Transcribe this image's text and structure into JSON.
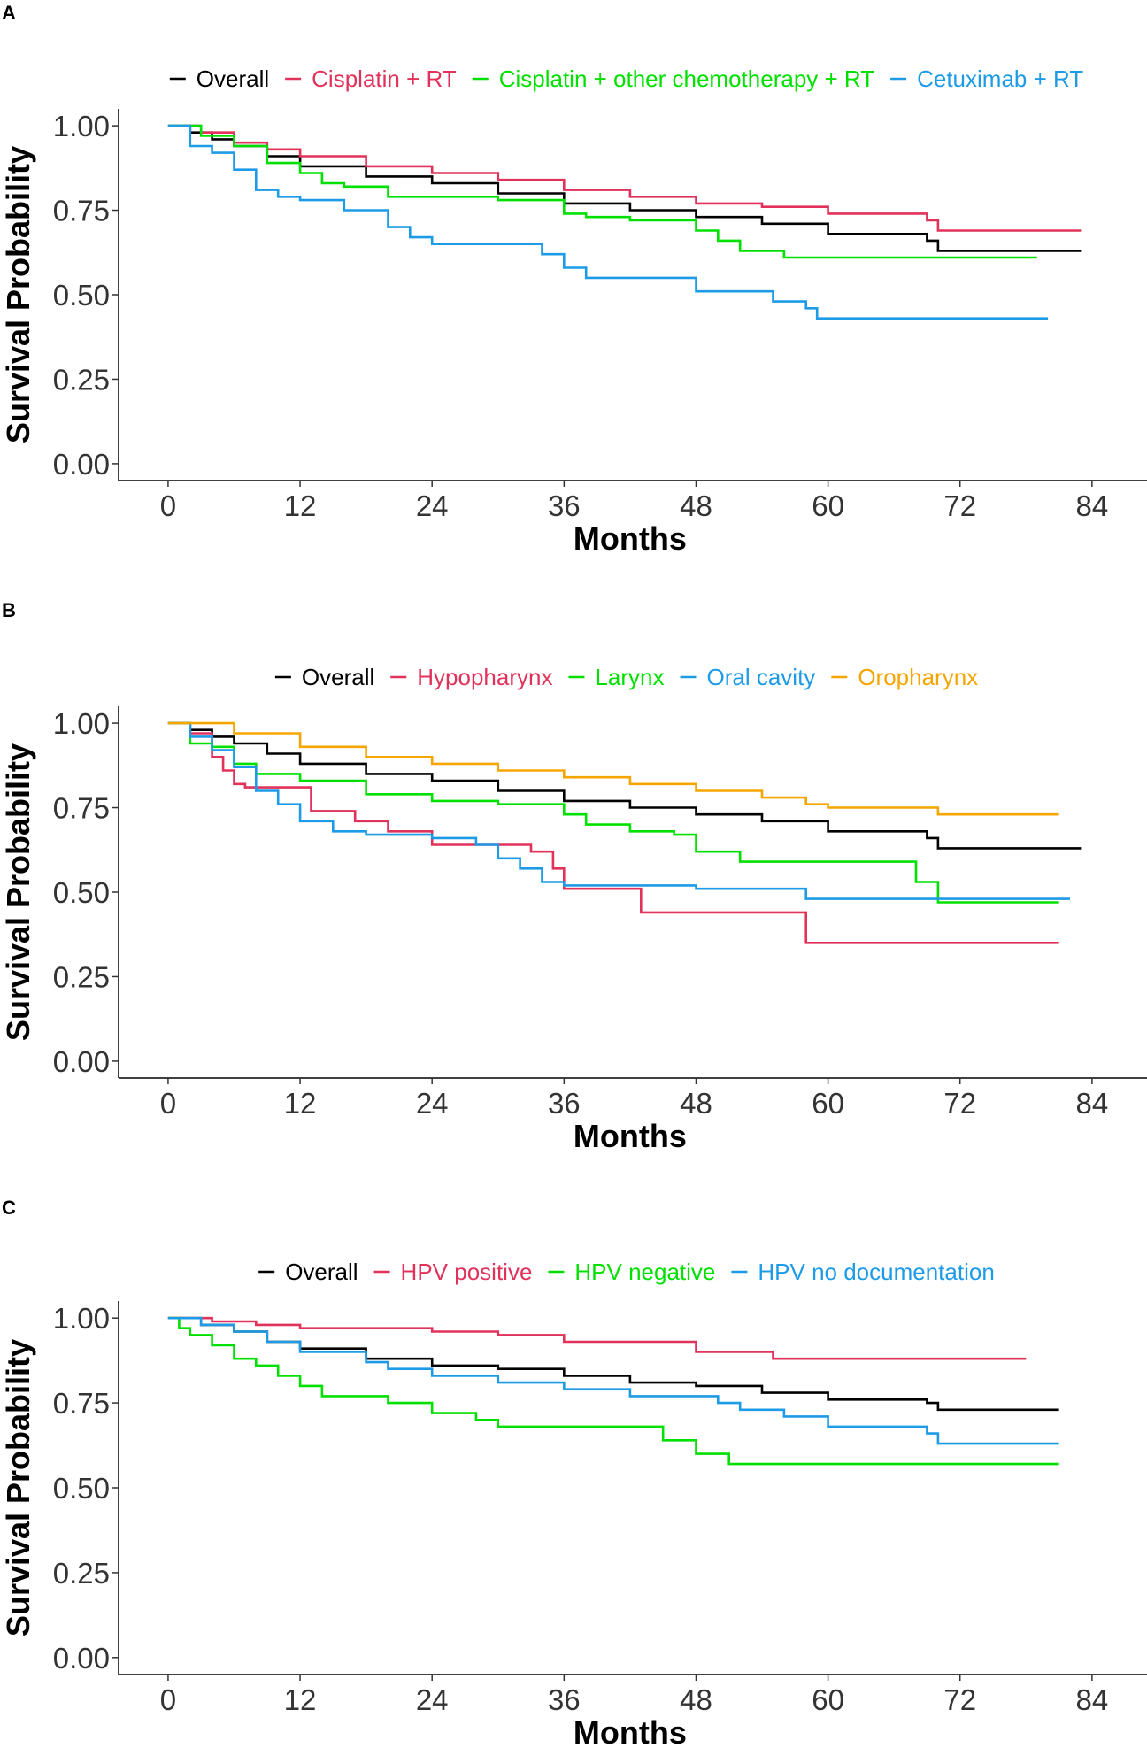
{
  "chart_data": [
    {
      "panel": "A",
      "type": "line",
      "xlabel": "Months",
      "ylabel": "Survival Probability",
      "xticks": [
        0,
        12,
        24,
        36,
        48,
        60,
        72,
        84
      ],
      "yticks": [
        "0.00",
        "0.25",
        "0.50",
        "0.75",
        "1.00"
      ],
      "xlim": [
        -4.5,
        89
      ],
      "ylim": [
        -0.05,
        1.05
      ],
      "legend_position": "top",
      "series": [
        {
          "name": "Overall",
          "color": "#000000",
          "x": [
            0,
            2,
            4,
            6,
            9,
            12,
            18,
            24,
            30,
            36,
            42,
            48,
            54,
            60,
            66,
            69,
            70,
            83
          ],
          "y": [
            1.0,
            0.98,
            0.96,
            0.94,
            0.91,
            0.88,
            0.85,
            0.83,
            0.8,
            0.77,
            0.75,
            0.73,
            0.71,
            0.68,
            0.68,
            0.66,
            0.63,
            0.63
          ]
        },
        {
          "name": "Cisplatin + RT",
          "color": "#e0325a",
          "x": [
            0,
            3,
            6,
            9,
            12,
            18,
            24,
            30,
            36,
            42,
            48,
            54,
            60,
            66,
            69,
            70,
            83
          ],
          "y": [
            1.0,
            0.98,
            0.95,
            0.93,
            0.91,
            0.88,
            0.86,
            0.84,
            0.81,
            0.79,
            0.77,
            0.76,
            0.74,
            0.74,
            0.72,
            0.69,
            0.69
          ]
        },
        {
          "name": "Cisplatin + other chemotherapy + RT",
          "color": "#00e000",
          "x": [
            0,
            3,
            6,
            9,
            12,
            14,
            16,
            20,
            24,
            30,
            36,
            38,
            42,
            48,
            50,
            52,
            56,
            79
          ],
          "y": [
            1.0,
            0.97,
            0.94,
            0.89,
            0.86,
            0.83,
            0.82,
            0.79,
            0.79,
            0.78,
            0.74,
            0.73,
            0.72,
            0.69,
            0.66,
            0.63,
            0.61,
            0.61
          ]
        },
        {
          "name": "Cetuximab + RT",
          "color": "#1e9be6",
          "x": [
            0,
            2,
            4,
            6,
            8,
            10,
            12,
            16,
            20,
            22,
            24,
            30,
            34,
            36,
            38,
            40,
            48,
            52,
            55,
            58,
            59,
            80
          ],
          "y": [
            1.0,
            0.94,
            0.92,
            0.87,
            0.81,
            0.79,
            0.78,
            0.75,
            0.7,
            0.67,
            0.65,
            0.65,
            0.62,
            0.58,
            0.55,
            0.55,
            0.51,
            0.51,
            0.48,
            0.46,
            0.43,
            0.43
          ]
        }
      ]
    },
    {
      "panel": "B",
      "type": "line",
      "xlabel": "Months",
      "ylabel": "Survival Probability",
      "xticks": [
        0,
        12,
        24,
        36,
        48,
        60,
        72,
        84
      ],
      "yticks": [
        "0.00",
        "0.25",
        "0.50",
        "0.75",
        "1.00"
      ],
      "xlim": [
        -4.5,
        89
      ],
      "ylim": [
        -0.05,
        1.05
      ],
      "legend_position": "top",
      "series": [
        {
          "name": "Overall",
          "color": "#000000",
          "x": [
            0,
            2,
            4,
            6,
            9,
            12,
            18,
            24,
            30,
            36,
            42,
            48,
            54,
            60,
            66,
            69,
            70,
            83
          ],
          "y": [
            1.0,
            0.98,
            0.96,
            0.94,
            0.91,
            0.88,
            0.85,
            0.83,
            0.8,
            0.77,
            0.75,
            0.73,
            0.71,
            0.68,
            0.68,
            0.66,
            0.63,
            0.63
          ]
        },
        {
          "name": "Hypopharynx",
          "color": "#e0325a",
          "x": [
            0,
            2,
            4,
            5,
            6,
            7,
            12,
            13,
            17,
            20,
            24,
            30,
            33,
            35,
            36,
            43,
            58,
            81
          ],
          "y": [
            1.0,
            0.97,
            0.9,
            0.86,
            0.82,
            0.81,
            0.81,
            0.74,
            0.71,
            0.68,
            0.64,
            0.64,
            0.62,
            0.57,
            0.51,
            0.44,
            0.35,
            0.35
          ]
        },
        {
          "name": "Larynx",
          "color": "#00e000",
          "x": [
            0,
            2,
            4,
            6,
            8,
            12,
            18,
            24,
            30,
            36,
            38,
            42,
            46,
            48,
            52,
            60,
            68,
            70,
            81
          ],
          "y": [
            1.0,
            0.94,
            0.93,
            0.88,
            0.85,
            0.83,
            0.79,
            0.77,
            0.76,
            0.73,
            0.7,
            0.68,
            0.67,
            0.62,
            0.59,
            0.59,
            0.53,
            0.47,
            0.47
          ]
        },
        {
          "name": "Oral cavity",
          "color": "#1e9be6",
          "x": [
            0,
            2,
            4,
            6,
            8,
            10,
            12,
            15,
            18,
            24,
            28,
            30,
            32,
            34,
            36,
            48,
            56,
            58,
            82
          ],
          "y": [
            1.0,
            0.96,
            0.92,
            0.87,
            0.8,
            0.76,
            0.71,
            0.68,
            0.67,
            0.66,
            0.64,
            0.6,
            0.57,
            0.53,
            0.52,
            0.51,
            0.51,
            0.48,
            0.48
          ]
        },
        {
          "name": "Oropharynx",
          "color": "#f5a500",
          "x": [
            0,
            6,
            12,
            18,
            24,
            30,
            36,
            42,
            48,
            54,
            58,
            60,
            69,
            70,
            81
          ],
          "y": [
            1.0,
            0.97,
            0.93,
            0.9,
            0.88,
            0.86,
            0.84,
            0.82,
            0.8,
            0.78,
            0.76,
            0.75,
            0.75,
            0.73,
            0.73
          ]
        }
      ]
    },
    {
      "panel": "C",
      "type": "line",
      "xlabel": "Months",
      "ylabel": "Survival Probability",
      "xticks": [
        0,
        12,
        24,
        36,
        48,
        60,
        72,
        84
      ],
      "yticks": [
        "0.00",
        "0.25",
        "0.50",
        "0.75",
        "1.00"
      ],
      "xlim": [
        -4.5,
        89
      ],
      "ylim": [
        -0.05,
        1.05
      ],
      "legend_position": "top",
      "series": [
        {
          "name": "Overall",
          "color": "#000000",
          "x": [
            0,
            3,
            6,
            9,
            12,
            18,
            24,
            30,
            36,
            42,
            48,
            54,
            60,
            66,
            69,
            70,
            81
          ],
          "y": [
            1.0,
            0.98,
            0.96,
            0.93,
            0.91,
            0.88,
            0.86,
            0.85,
            0.83,
            0.81,
            0.8,
            0.78,
            0.76,
            0.76,
            0.75,
            0.73,
            0.73
          ]
        },
        {
          "name": "HPV positive",
          "color": "#e0325a",
          "x": [
            0,
            4,
            8,
            12,
            24,
            30,
            36,
            48,
            55,
            78
          ],
          "y": [
            1.0,
            0.99,
            0.98,
            0.97,
            0.96,
            0.95,
            0.93,
            0.9,
            0.88,
            0.88
          ]
        },
        {
          "name": "HPV negative",
          "color": "#00e000",
          "x": [
            0,
            1,
            2,
            4,
            6,
            8,
            10,
            12,
            14,
            16,
            20,
            24,
            28,
            30,
            36,
            45,
            48,
            51,
            81
          ],
          "y": [
            1.0,
            0.97,
            0.95,
            0.92,
            0.88,
            0.86,
            0.83,
            0.8,
            0.77,
            0.77,
            0.75,
            0.72,
            0.7,
            0.68,
            0.68,
            0.64,
            0.6,
            0.57,
            0.57
          ]
        },
        {
          "name": "HPV no documentation",
          "color": "#1e9be6",
          "x": [
            0,
            3,
            6,
            9,
            12,
            18,
            20,
            24,
            30,
            36,
            42,
            48,
            50,
            52,
            54,
            56,
            60,
            69,
            70,
            81
          ],
          "y": [
            1.0,
            0.98,
            0.96,
            0.93,
            0.9,
            0.87,
            0.85,
            0.83,
            0.81,
            0.79,
            0.77,
            0.77,
            0.75,
            0.73,
            0.73,
            0.71,
            0.68,
            0.66,
            0.63,
            0.63
          ]
        }
      ]
    }
  ]
}
